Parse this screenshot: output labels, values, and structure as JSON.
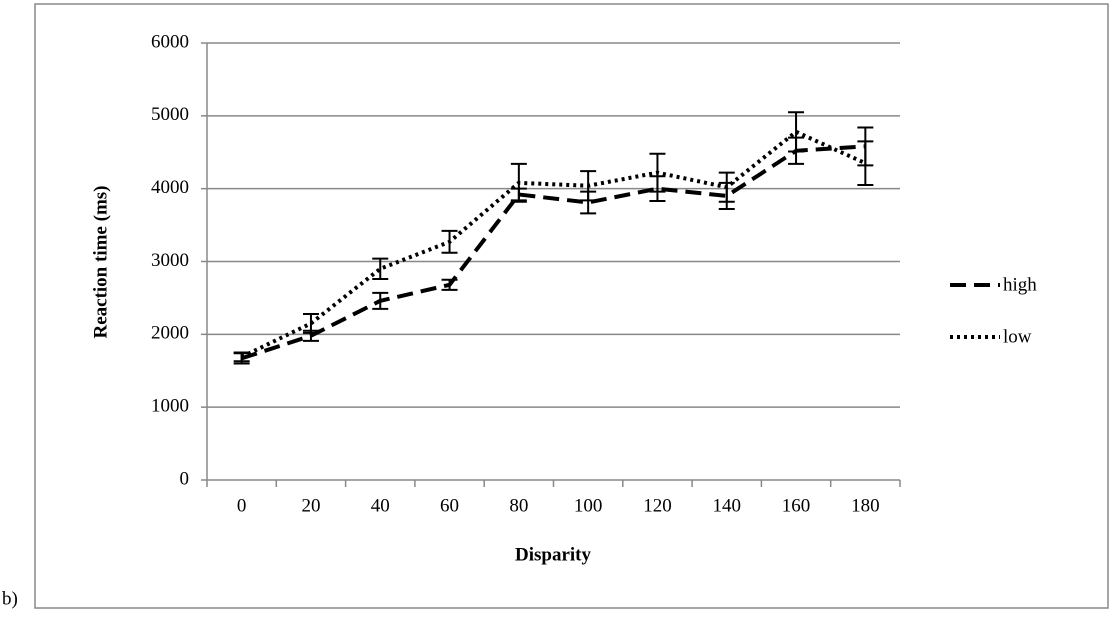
{
  "label": "b)",
  "chart_data": {
    "type": "line",
    "x_label": "Disparity",
    "y_label": "Reaction time (ms)",
    "categories": [
      "0",
      "20",
      "40",
      "60",
      "80",
      "100",
      "120",
      "140",
      "160",
      "180"
    ],
    "series": [
      {
        "name": "high",
        "color": "#000000",
        "dash": "dashed",
        "values": [
          1670,
          1980,
          2460,
          2680,
          3920,
          3810,
          4000,
          3900,
          4520,
          4580
        ],
        "errors": [
          70,
          70,
          110,
          70,
          80,
          150,
          170,
          180,
          180,
          260
        ]
      },
      {
        "name": "low",
        "color": "#000000",
        "dash": "dotted",
        "values": [
          1690,
          2150,
          2900,
          3270,
          4080,
          4040,
          4220,
          4020,
          4780,
          4350
        ],
        "errors": [
          60,
          130,
          140,
          150,
          260,
          200,
          260,
          200,
          270,
          300
        ]
      }
    ],
    "ylim": [
      0,
      6000
    ],
    "yticks": [
      0,
      1000,
      2000,
      3000,
      4000,
      5000,
      6000
    ],
    "grid": true,
    "legend": "right"
  }
}
